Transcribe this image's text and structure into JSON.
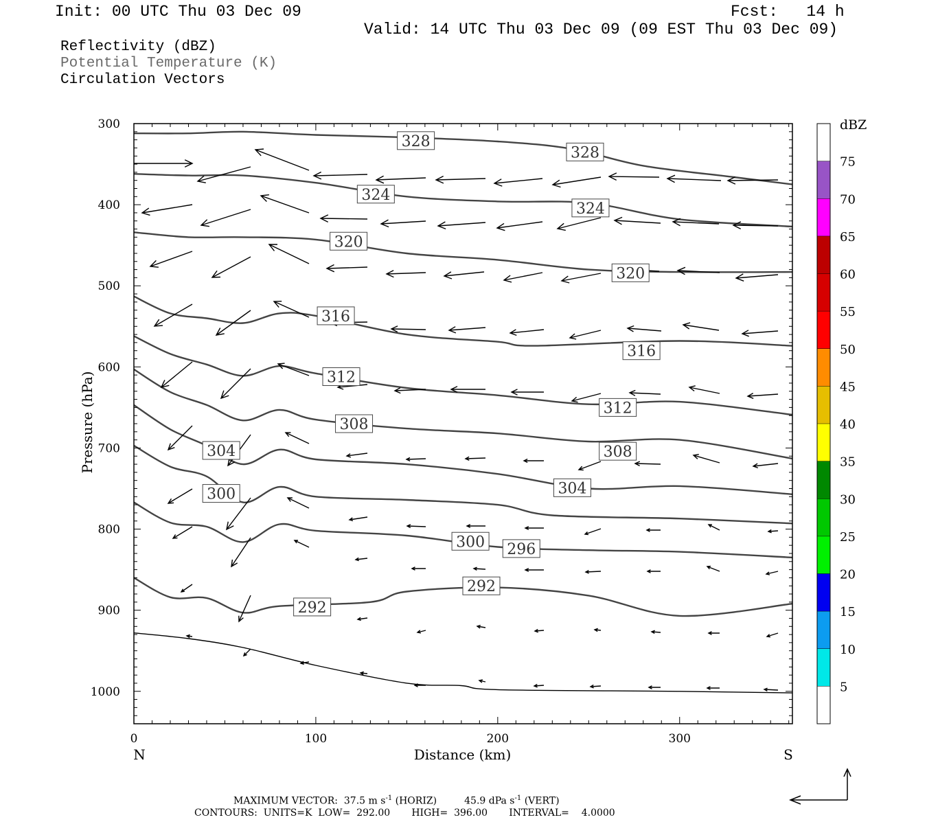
{
  "header": {
    "init": "Init: 00 UTC Thu 03 Dec 09",
    "fcst": "Fcst:   14 h",
    "valid": "Valid: 14 UTC Thu 03 Dec 09 (09 EST Thu 03 Dec 09)"
  },
  "fields": {
    "reflectivity": "Reflectivity (dBZ)",
    "theta": "Potential Temperature (K)",
    "vectors": "Circulation Vectors"
  },
  "footer": {
    "max_vector_label": "MAXIMUM VECTOR:",
    "horiz_value": "37.5 m s",
    "horiz_unit": "(HORIZ)",
    "vert_value": "45.9 dPa s",
    "vert_unit": "(VERT)",
    "exp": "-1",
    "contours": "CONTOURS:  UNITS=K  LOW=  292.00       HIGH=  396.00       INTERVAL=    4.0000"
  },
  "colors": {
    "contour": "#444444",
    "arrow": "#000000",
    "frame": "#000000"
  },
  "chart_data": {
    "type": "contour",
    "xlabel": "Distance (km)",
    "ylabel": "Pressure (hPa)",
    "xlim": [
      0,
      362
    ],
    "ylim": [
      1040,
      300
    ],
    "xticks": [
      0,
      100,
      200,
      300
    ],
    "yticks": [
      300,
      400,
      500,
      600,
      700,
      800,
      900,
      1000
    ],
    "x_end_labels": {
      "left": "N",
      "right": "S"
    },
    "colorbar": {
      "title": "dBZ",
      "levels": [
        5,
        10,
        15,
        20,
        25,
        30,
        35,
        40,
        45,
        50,
        55,
        60,
        65,
        70,
        75
      ],
      "colors": [
        "#00e8e8",
        "#0c9cf0",
        "#0000f0",
        "#00f000",
        "#00c800",
        "#008800",
        "#ffff00",
        "#e6be00",
        "#ff8c00",
        "#ff0000",
        "#d60000",
        "#bc0000",
        "#ff00ff",
        "#9854c6"
      ]
    },
    "contours": [
      {
        "label": "328",
        "points": [
          [
            0,
            312
          ],
          [
            30,
            312
          ],
          [
            60,
            310
          ],
          [
            100,
            314
          ],
          [
            150,
            317
          ],
          [
            200,
            322
          ],
          [
            240,
            331
          ],
          [
            280,
            352
          ],
          [
            330,
            366
          ],
          [
            362,
            375
          ]
        ],
        "labels_at": [
          [
            155,
            321
          ],
          [
            248,
            335
          ]
        ]
      },
      {
        "label": "324",
        "points": [
          [
            0,
            362
          ],
          [
            30,
            364
          ],
          [
            60,
            364
          ],
          [
            100,
            373
          ],
          [
            150,
            390
          ],
          [
            200,
            396
          ],
          [
            250,
            398
          ],
          [
            300,
            418
          ],
          [
            362,
            427
          ]
        ],
        "labels_at": [
          [
            133,
            387
          ],
          [
            251,
            404
          ]
        ]
      },
      {
        "label": "320",
        "points": [
          [
            0,
            434
          ],
          [
            30,
            440
          ],
          [
            60,
            440
          ],
          [
            100,
            443
          ],
          [
            150,
            460
          ],
          [
            200,
            468
          ],
          [
            250,
            480
          ],
          [
            300,
            483
          ],
          [
            362,
            483
          ]
        ],
        "labels_at": [
          [
            118,
            445
          ],
          [
            273,
            484
          ]
        ]
      },
      {
        "label": "316",
        "points": [
          [
            0,
            513
          ],
          [
            20,
            534
          ],
          [
            40,
            540
          ],
          [
            60,
            546
          ],
          [
            80,
            534
          ],
          [
            100,
            537
          ],
          [
            150,
            560
          ],
          [
            200,
            569
          ],
          [
            220,
            574
          ],
          [
            300,
            568
          ],
          [
            362,
            574
          ]
        ],
        "labels_at": [
          [
            111,
            537
          ],
          [
            279,
            580
          ]
        ]
      },
      {
        "label": "312",
        "points": [
          [
            0,
            562
          ],
          [
            20,
            584
          ],
          [
            40,
            597
          ],
          [
            60,
            611
          ],
          [
            80,
            599
          ],
          [
            100,
            608
          ],
          [
            150,
            626
          ],
          [
            200,
            635
          ],
          [
            250,
            646
          ],
          [
            300,
            643
          ],
          [
            362,
            659
          ]
        ],
        "labels_at": [
          [
            114,
            612
          ],
          [
            266,
            650
          ]
        ]
      },
      {
        "label": "308",
        "points": [
          [
            0,
            603
          ],
          [
            20,
            631
          ],
          [
            40,
            647
          ],
          [
            60,
            666
          ],
          [
            80,
            653
          ],
          [
            100,
            665
          ],
          [
            150,
            676
          ],
          [
            200,
            682
          ],
          [
            250,
            692
          ],
          [
            300,
            690
          ],
          [
            362,
            713
          ]
        ],
        "labels_at": [
          [
            121,
            670
          ],
          [
            266,
            704
          ]
        ]
      },
      {
        "label": "304",
        "points": [
          [
            0,
            647
          ],
          [
            20,
            677
          ],
          [
            40,
            697
          ],
          [
            60,
            720
          ],
          [
            80,
            702
          ],
          [
            100,
            714
          ],
          [
            150,
            720
          ],
          [
            200,
            732
          ],
          [
            250,
            750
          ],
          [
            300,
            747
          ],
          [
            362,
            757
          ]
        ],
        "labels_at": [
          [
            48,
            703
          ],
          [
            241,
            749
          ]
        ]
      },
      {
        "label": "300",
        "points": [
          [
            0,
            697
          ],
          [
            20,
            723
          ],
          [
            40,
            735
          ],
          [
            60,
            767
          ],
          [
            80,
            748
          ],
          [
            100,
            760
          ],
          [
            150,
            764
          ],
          [
            200,
            770
          ],
          [
            230,
            783
          ],
          [
            300,
            787
          ],
          [
            362,
            793
          ]
        ],
        "labels_at": [
          [
            48,
            756
          ],
          [
            185,
            815
          ]
        ]
      },
      {
        "label": "296",
        "points": [
          [
            0,
            767
          ],
          [
            20,
            792
          ],
          [
            40,
            797
          ],
          [
            60,
            816
          ],
          [
            80,
            794
          ],
          [
            100,
            802
          ],
          [
            150,
            808
          ],
          [
            200,
            822
          ],
          [
            250,
            826
          ],
          [
            300,
            828
          ],
          [
            362,
            835
          ]
        ],
        "labels_at": [
          [
            213,
            824
          ]
        ]
      },
      {
        "label": "292",
        "points": [
          [
            0,
            860
          ],
          [
            20,
            884
          ],
          [
            40,
            885
          ],
          [
            60,
            903
          ],
          [
            80,
            895
          ],
          [
            130,
            890
          ],
          [
            150,
            877
          ],
          [
            200,
            872
          ],
          [
            250,
            882
          ],
          [
            300,
            907
          ],
          [
            362,
            892
          ]
        ],
        "labels_at": [
          [
            98,
            896
          ],
          [
            191,
            870
          ]
        ]
      },
      {
        "label": "",
        "points": [
          [
            0,
            928
          ],
          [
            30,
            935
          ],
          [
            60,
            946
          ],
          [
            100,
            968
          ],
          [
            150,
            990
          ],
          [
            180,
            993
          ],
          [
            200,
            998
          ],
          [
            300,
            1000
          ],
          [
            362,
            1002
          ]
        ],
        "labels_at": []
      }
    ],
    "vectors_note": "Circulation vectors (horizontal + vertical components)"
  }
}
